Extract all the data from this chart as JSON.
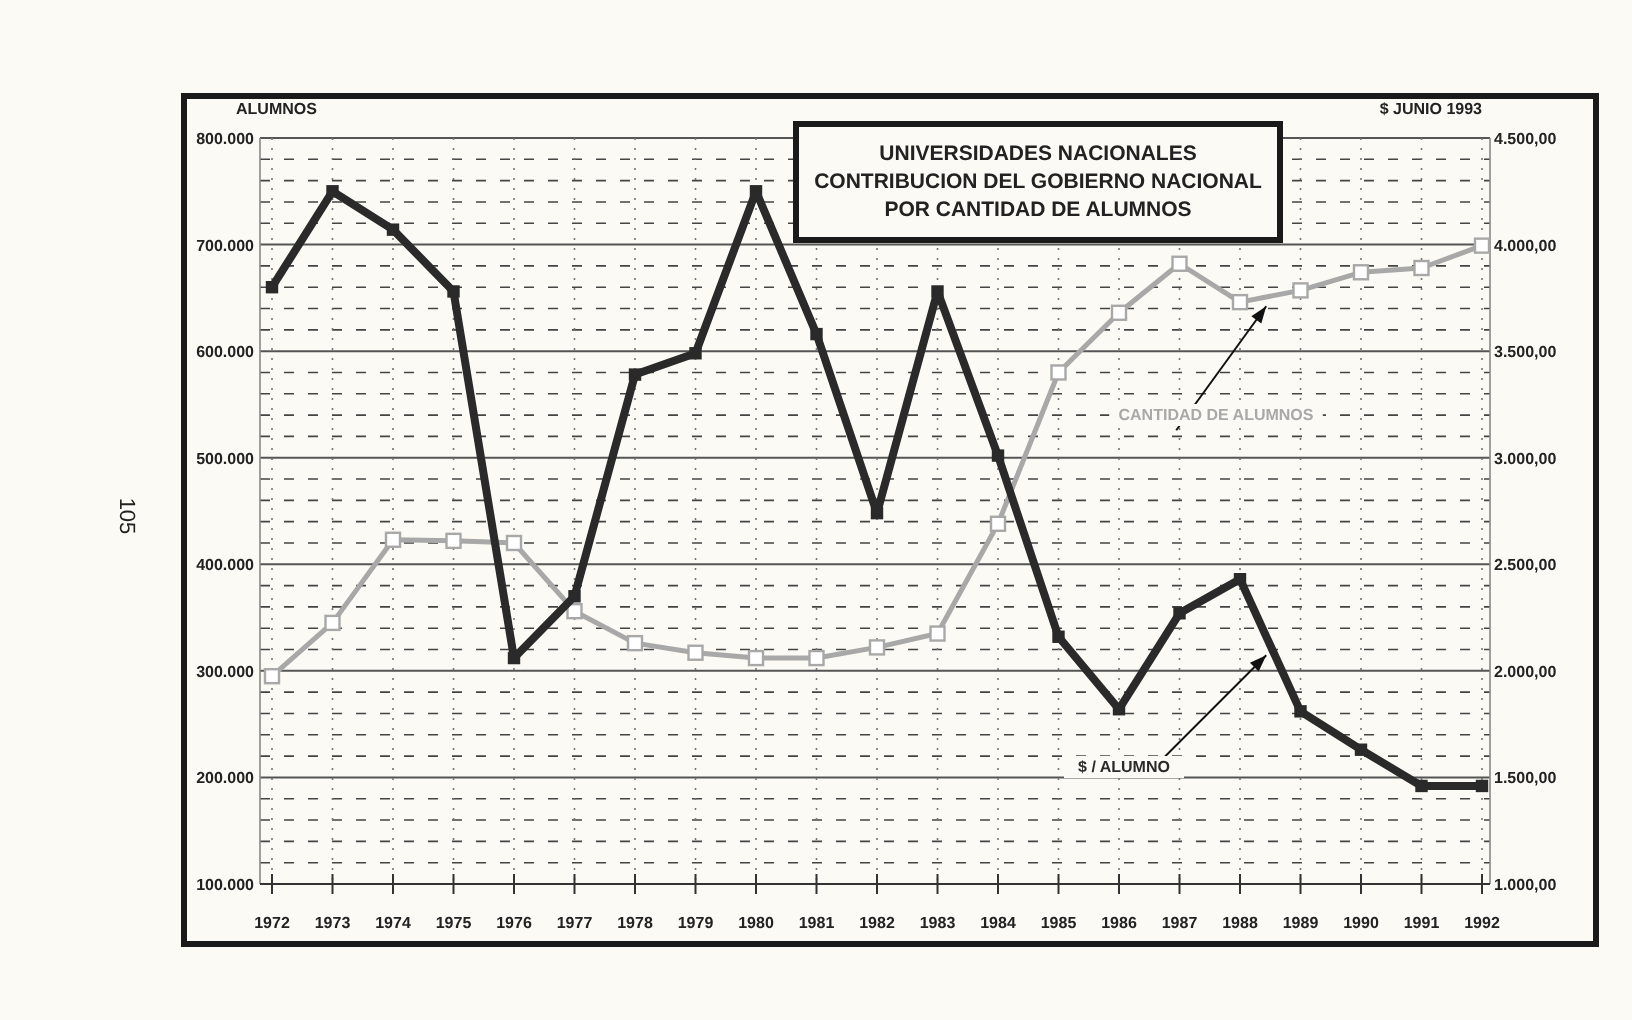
{
  "chart_data": {
    "type": "line",
    "title": "UNIVERSIDADES NACIONALES\nCONTRIBUCION DEL GOBIERNO NACIONAL\nPOR CANTIDAD DE ALUMNOS",
    "ylabel": "ALUMNOS",
    "y2label": "$ JUNIO 1993",
    "categories": [
      "1972",
      "1973",
      "1974",
      "1975",
      "1976",
      "1977",
      "1978",
      "1979",
      "1980",
      "1981",
      "1982",
      "1983",
      "1984",
      "1985",
      "1986",
      "1987",
      "1988",
      "1989",
      "1990",
      "1991",
      "1992"
    ],
    "series": [
      {
        "name": "CANTIDAD DE ALUMNOS",
        "color": "#a8a8a8",
        "values": [
          295000,
          345000,
          423000,
          422000,
          420000,
          356000,
          326000,
          317000,
          312000,
          312000,
          322000,
          335000,
          438000,
          580000,
          636000,
          682000,
          646000,
          657000,
          674000,
          678000,
          699000
        ]
      },
      {
        "name": "$ / ALUMNO",
        "color": "#2a2a2a",
        "axis": "y2",
        "values": [
          3800,
          4250,
          4070,
          3780,
          2060,
          2350,
          3390,
          3490,
          4250,
          3580,
          2740,
          3780,
          3010,
          2160,
          1820,
          2270,
          2430,
          1810,
          1630,
          1460,
          1460
        ]
      }
    ],
    "ylim": [
      100000,
      800000
    ],
    "yticks": [
      {
        "value": 100000,
        "label": "100.000"
      },
      {
        "value": 200000,
        "label": "200.000"
      },
      {
        "value": 300000,
        "label": "300.000"
      },
      {
        "value": 400000,
        "label": "400.000"
      },
      {
        "value": 500000,
        "label": "500.000"
      },
      {
        "value": 600000,
        "label": "600.000"
      },
      {
        "value": 700000,
        "label": "700.000"
      },
      {
        "value": 800000,
        "label": "800.000"
      }
    ],
    "y2lim": [
      1000,
      4500
    ],
    "y2ticks": [
      {
        "value": 1000,
        "label": "1.000,00"
      },
      {
        "value": 1500,
        "label": "1.500,00"
      },
      {
        "value": 2000,
        "label": "2.000,00"
      },
      {
        "value": 2500,
        "label": "2.500,00"
      },
      {
        "value": 3000,
        "label": "3.000,00"
      },
      {
        "value": 3500,
        "label": "3.500,00"
      },
      {
        "value": 4000,
        "label": "4.000,00"
      },
      {
        "value": 4500,
        "label": "4.500,00"
      }
    ],
    "grid": true,
    "marker": "square",
    "line_style": "solid",
    "annotations": [
      "105"
    ]
  }
}
